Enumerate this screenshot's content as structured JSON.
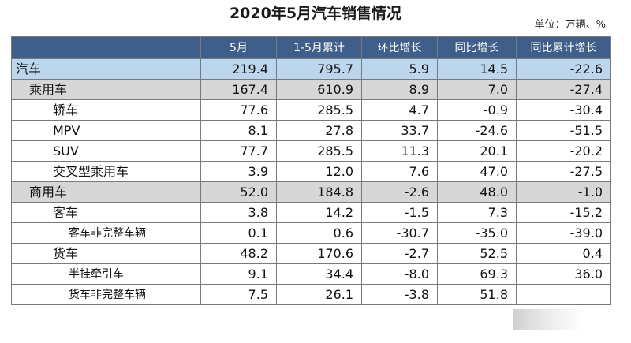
{
  "title": "2020年5月汽车销售情况",
  "unit": "单位：万辆、%",
  "headers": [
    "",
    "5月",
    "1-5月累计",
    "环比增长",
    "同比增长",
    "同比累计增长"
  ],
  "rows": [
    {
      "name": "汽车",
      "level": 0,
      "values": [
        "219.4",
        "795.7",
        "5.9",
        "14.5",
        "-22.6"
      ]
    },
    {
      "name": "乘用车",
      "level": 1,
      "values": [
        "167.4",
        "610.9",
        "8.9",
        "7.0",
        "-27.4"
      ]
    },
    {
      "name": "轿车",
      "level": 2,
      "values": [
        "77.6",
        "285.5",
        "4.7",
        "-0.9",
        "-30.4"
      ]
    },
    {
      "name": "MPV",
      "level": 2,
      "values": [
        "8.1",
        "27.8",
        "33.7",
        "-24.6",
        "-51.5"
      ]
    },
    {
      "name": "SUV",
      "level": 2,
      "values": [
        "77.7",
        "285.5",
        "11.3",
        "20.1",
        "-20.2"
      ]
    },
    {
      "name": "交叉型乘用车",
      "level": 2,
      "values": [
        "3.9",
        "12.0",
        "7.6",
        "47.0",
        "-27.5"
      ]
    },
    {
      "name": "商用车",
      "level": 1,
      "values": [
        "52.0",
        "184.8",
        "-2.6",
        "48.0",
        "-1.0"
      ]
    },
    {
      "name": "客车",
      "level": 2,
      "values": [
        "3.8",
        "14.2",
        "-1.5",
        "7.3",
        "-15.2"
      ]
    },
    {
      "name": "客车非完整车辆",
      "level": 3,
      "values": [
        "0.1",
        "0.6",
        "-30.7",
        "-35.0",
        "-39.0"
      ]
    },
    {
      "name": "货车",
      "level": 2,
      "values": [
        "48.2",
        "170.6",
        "-2.7",
        "52.5",
        "0.4"
      ]
    },
    {
      "name": "半挂牵引车",
      "level": 3,
      "values": [
        "9.1",
        "34.4",
        "-8.0",
        "69.3",
        "36.0"
      ]
    },
    {
      "name": "货车非完整车辆",
      "level": 3,
      "values": [
        "7.5",
        "26.1",
        "-3.8",
        "51.8",
        ""
      ]
    }
  ]
}
